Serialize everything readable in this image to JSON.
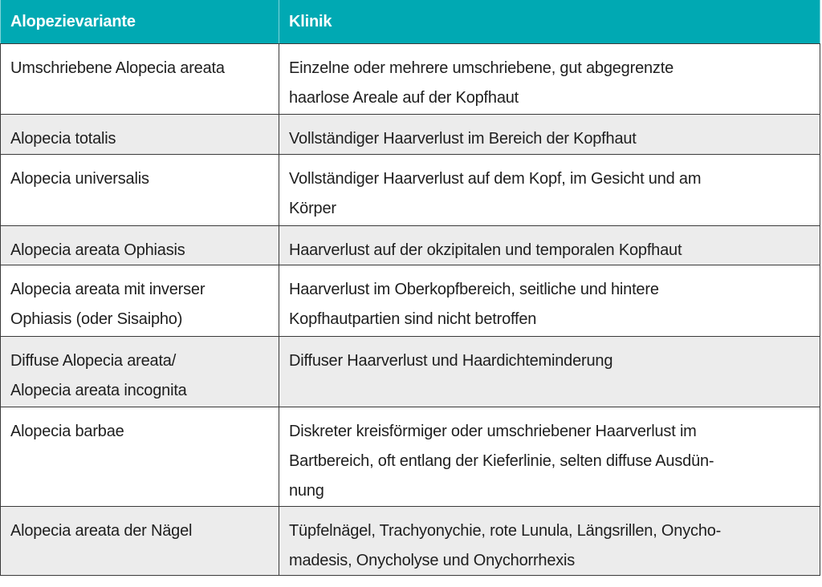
{
  "table": {
    "header": [
      "Alopezievariante",
      "Klinik"
    ],
    "rows": [
      [
        [
          "Umschriebene Alopecia areata"
        ],
        [
          "Einzelne oder mehrere umschriebene, gut abgegrenzte",
          "haarlose Areale auf der Kopfhaut"
        ]
      ],
      [
        [
          "Alopecia totalis"
        ],
        [
          "Vollständiger Haarverlust im Bereich der Kopfhaut"
        ]
      ],
      [
        [
          "Alopecia universalis"
        ],
        [
          "Vollständiger Haarverlust auf dem Kopf, im Gesicht und am",
          "Körper"
        ]
      ],
      [
        [
          "Alopecia areata Ophiasis"
        ],
        [
          "Haarverlust auf der okzipitalen und temporalen Kopfhaut"
        ]
      ],
      [
        [
          "Alopecia areata mit inverser",
          "Ophiasis (oder Sisaipho)"
        ],
        [
          "Haarverlust im Oberkopfbereich, seitliche und hintere",
          "Kopfhautpartien sind nicht betroffen"
        ]
      ],
      [
        [
          "Diffuse Alopecia areata/",
          "Alopecia areata incognita"
        ],
        [
          "Diffuser Haarverlust und Haardichteminderung"
        ]
      ],
      [
        [
          "Alopecia barbae"
        ],
        [
          "Diskreter kreisförmiger oder umschriebener Haarverlust im",
          "Bartbereich, oft entlang der Kieferlinie, selten diffuse Ausdün-",
          "nung"
        ]
      ],
      [
        [
          "Alopecia areata der Nägel"
        ],
        [
          "Tüpfelnägel, Trachyonychie, rote Lunula, Längsrillen, Onycho-",
          "madesis, Onycholyse und Onychorrhexis"
        ]
      ]
    ]
  }
}
